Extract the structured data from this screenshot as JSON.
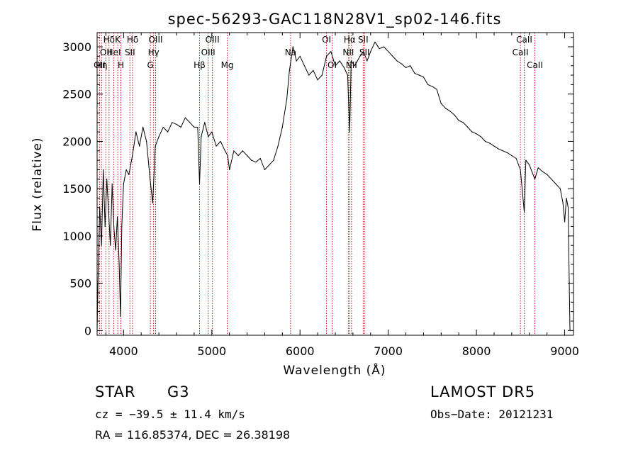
{
  "chart_data": {
    "type": "line",
    "title": "spec-56293-GAC118N28V1_sp02-146.fits",
    "xlabel": "Wavelength (Å)",
    "ylabel": "Flux (relative)",
    "xlim": [
      3700,
      9100
    ],
    "ylim": [
      -50,
      3150
    ],
    "x_ticks": [
      {
        "value": 4000,
        "label": "4000"
      },
      {
        "value": 5000,
        "label": "5000"
      },
      {
        "value": 6000,
        "label": "6000"
      },
      {
        "value": 7000,
        "label": "7000"
      },
      {
        "value": 8000,
        "label": "8000"
      },
      {
        "value": 9000,
        "label": "9000"
      }
    ],
    "y_ticks": [
      {
        "value": 0,
        "label": "0"
      },
      {
        "value": 500,
        "label": "500"
      },
      {
        "value": 1000,
        "label": "1000"
      },
      {
        "value": 1500,
        "label": "1500"
      },
      {
        "value": 2000,
        "label": "2000"
      },
      {
        "value": 2500,
        "label": "2500"
      },
      {
        "value": 3000,
        "label": "3000"
      }
    ],
    "grid": false,
    "series": [
      {
        "color": "#000000",
        "points": [
          [
            3700,
            0
          ],
          [
            3710,
            500
          ],
          [
            3730,
            1300
          ],
          [
            3750,
            900
          ],
          [
            3770,
            1700
          ],
          [
            3790,
            1100
          ],
          [
            3810,
            1600
          ],
          [
            3830,
            1250
          ],
          [
            3850,
            900
          ],
          [
            3870,
            1550
          ],
          [
            3890,
            1100
          ],
          [
            3910,
            850
          ],
          [
            3930,
            1200
          ],
          [
            3950,
            700
          ],
          [
            3965,
            150
          ],
          [
            3980,
            1100
          ],
          [
            4000,
            1550
          ],
          [
            4030,
            1700
          ],
          [
            4060,
            1650
          ],
          [
            4100,
            1850
          ],
          [
            4140,
            2100
          ],
          [
            4180,
            1950
          ],
          [
            4220,
            2150
          ],
          [
            4260,
            2000
          ],
          [
            4300,
            1600
          ],
          [
            4330,
            1350
          ],
          [
            4360,
            1950
          ],
          [
            4400,
            2050
          ],
          [
            4450,
            2150
          ],
          [
            4500,
            2100
          ],
          [
            4550,
            2200
          ],
          [
            4600,
            2180
          ],
          [
            4650,
            2150
          ],
          [
            4700,
            2250
          ],
          [
            4750,
            2200
          ],
          [
            4800,
            2150
          ],
          [
            4840,
            2150
          ],
          [
            4861,
            1550
          ],
          [
            4880,
            2050
          ],
          [
            4920,
            2200
          ],
          [
            4960,
            2050
          ],
          [
            5000,
            2100
          ],
          [
            5050,
            1950
          ],
          [
            5100,
            2000
          ],
          [
            5150,
            1900
          ],
          [
            5180,
            1850
          ],
          [
            5200,
            1700
          ],
          [
            5250,
            1900
          ],
          [
            5300,
            1850
          ],
          [
            5350,
            1900
          ],
          [
            5400,
            1850
          ],
          [
            5450,
            1800
          ],
          [
            5500,
            1780
          ],
          [
            5550,
            1820
          ],
          [
            5600,
            1700
          ],
          [
            5650,
            1750
          ],
          [
            5700,
            1800
          ],
          [
            5750,
            1950
          ],
          [
            5800,
            2150
          ],
          [
            5850,
            2450
          ],
          [
            5880,
            2750
          ],
          [
            5920,
            3000
          ],
          [
            5960,
            2850
          ],
          [
            6000,
            2900
          ],
          [
            6050,
            2800
          ],
          [
            6100,
            2700
          ],
          [
            6150,
            2750
          ],
          [
            6200,
            2650
          ],
          [
            6250,
            2700
          ],
          [
            6300,
            2900
          ],
          [
            6350,
            2950
          ],
          [
            6400,
            2800
          ],
          [
            6450,
            2850
          ],
          [
            6500,
            2780
          ],
          [
            6540,
            2700
          ],
          [
            6563,
            2100
          ],
          [
            6580,
            2850
          ],
          [
            6620,
            2800
          ],
          [
            6680,
            2900
          ],
          [
            6720,
            2950
          ],
          [
            6760,
            2850
          ],
          [
            6800,
            2950
          ],
          [
            6850,
            3050
          ],
          [
            6900,
            2980
          ],
          [
            6950,
            3000
          ],
          [
            7000,
            2950
          ],
          [
            7050,
            2900
          ],
          [
            7100,
            2850
          ],
          [
            7150,
            2820
          ],
          [
            7200,
            2780
          ],
          [
            7250,
            2800
          ],
          [
            7300,
            2720
          ],
          [
            7350,
            2700
          ],
          [
            7400,
            2680
          ],
          [
            7450,
            2600
          ],
          [
            7500,
            2580
          ],
          [
            7550,
            2550
          ],
          [
            7600,
            2400
          ],
          [
            7650,
            2350
          ],
          [
            7700,
            2320
          ],
          [
            7750,
            2280
          ],
          [
            7800,
            2220
          ],
          [
            7850,
            2200
          ],
          [
            7900,
            2150
          ],
          [
            7950,
            2100
          ],
          [
            8000,
            2080
          ],
          [
            8050,
            2050
          ],
          [
            8100,
            2000
          ],
          [
            8150,
            1980
          ],
          [
            8200,
            1950
          ],
          [
            8250,
            1920
          ],
          [
            8300,
            1900
          ],
          [
            8350,
            1880
          ],
          [
            8400,
            1850
          ],
          [
            8450,
            1820
          ],
          [
            8498,
            1700
          ],
          [
            8542,
            1250
          ],
          [
            8560,
            1800
          ],
          [
            8600,
            1750
          ],
          [
            8662,
            1600
          ],
          [
            8700,
            1720
          ],
          [
            8750,
            1680
          ],
          [
            8800,
            1650
          ],
          [
            8850,
            1600
          ],
          [
            8900,
            1550
          ],
          [
            8950,
            1500
          ],
          [
            8980,
            1350
          ],
          [
            9000,
            1150
          ],
          [
            9020,
            1400
          ],
          [
            9040,
            1300
          ],
          [
            9060,
            0
          ]
        ]
      }
    ],
    "annotations": [
      {
        "wavelength": 3727,
        "label": "OII",
        "row": 2
      },
      {
        "wavelength": 3750,
        "label": "Hη",
        "row": 2
      },
      {
        "wavelength": 3798,
        "label": "OII",
        "row": 1
      },
      {
        "wavelength": 3835,
        "label": "Hδ",
        "row": 0
      },
      {
        "wavelength": 3889,
        "label": "HeI",
        "row": 1
      },
      {
        "wavelength": 3934,
        "label": "K",
        "row": 0
      },
      {
        "wavelength": 3969,
        "label": "H",
        "row": 2
      },
      {
        "wavelength": 4072,
        "label": "SII",
        "row": 1
      },
      {
        "wavelength": 4102,
        "label": "Hδ",
        "row": 0
      },
      {
        "wavelength": 4304,
        "label": "G",
        "row": 2
      },
      {
        "wavelength": 4340,
        "label": "Hγ",
        "row": 1
      },
      {
        "wavelength": 4363,
        "label": "OIII",
        "row": 0
      },
      {
        "wavelength": 4861,
        "label": "Hβ",
        "row": 2
      },
      {
        "wavelength": 4959,
        "label": "OIII",
        "row": 1
      },
      {
        "wavelength": 5007,
        "label": "OIII",
        "row": 0
      },
      {
        "wavelength": 5175,
        "label": "Mg",
        "row": 2
      },
      {
        "wavelength": 5893,
        "label": "Na",
        "row": 1
      },
      {
        "wavelength": 6300,
        "label": "OI",
        "row": 0
      },
      {
        "wavelength": 6364,
        "label": "OI",
        "row": 2
      },
      {
        "wavelength": 6548,
        "label": "NII",
        "row": 1
      },
      {
        "wavelength": 6563,
        "label": "Hα",
        "row": 0
      },
      {
        "wavelength": 6583,
        "label": "NII",
        "row": 2
      },
      {
        "wavelength": 6716,
        "label": "SII",
        "row": 0
      },
      {
        "wavelength": 6731,
        "label": "SII",
        "row": 1
      },
      {
        "wavelength": 8498,
        "label": "CaII",
        "row": 1
      },
      {
        "wavelength": 8542,
        "label": "CaII",
        "row": 0
      },
      {
        "wavelength": 8662,
        "label": "CaII",
        "row": 2
      }
    ],
    "annotation_color": "#c8101a"
  },
  "info": {
    "object_class": "STAR",
    "subclass": "G3",
    "survey": "LAMOST DR5",
    "redshift_line": "cz = −39.5 ± 11.4 km/s",
    "obs_date_line": "Obs−Date: 20121231",
    "coords_line": "RA = 116.85374, DEC =  26.38198"
  }
}
